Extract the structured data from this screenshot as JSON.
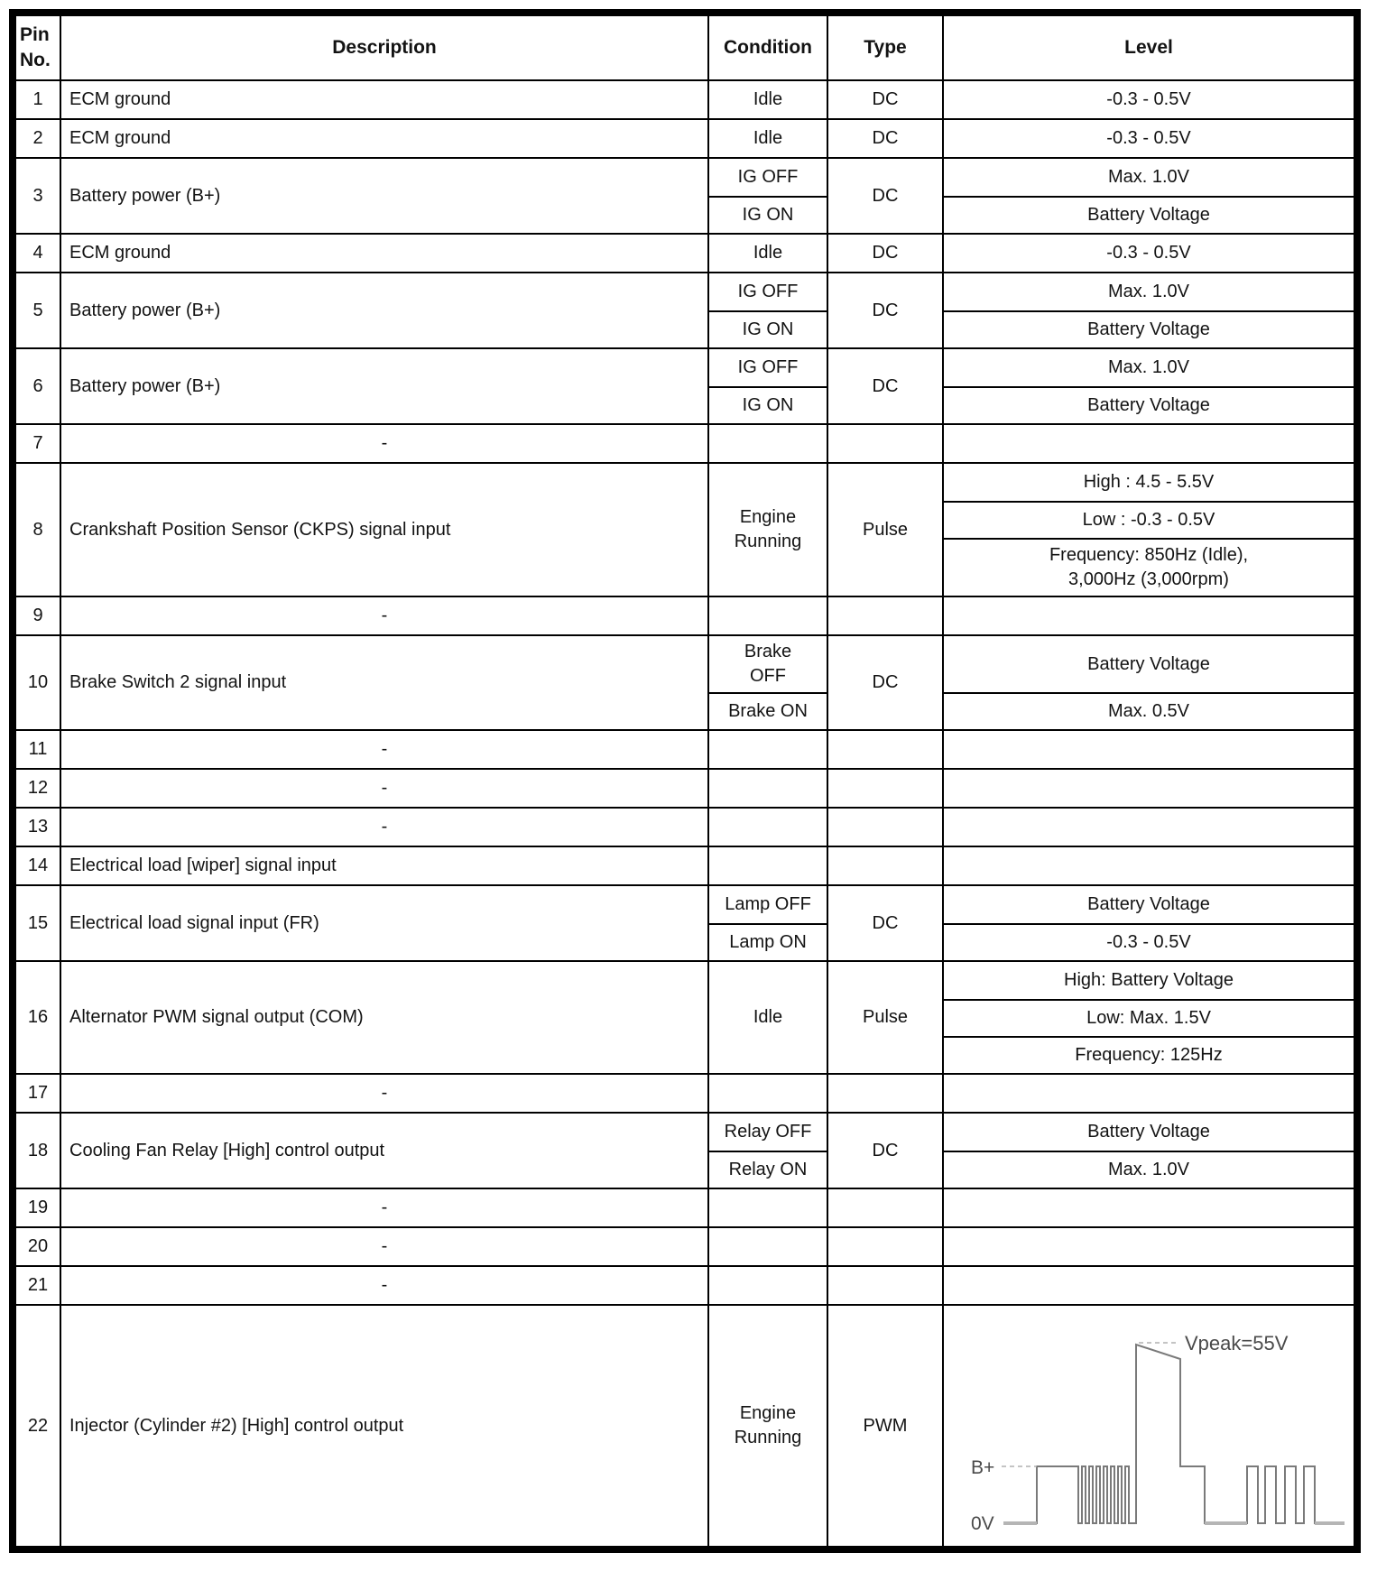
{
  "header": {
    "pin": "Pin\nNo.",
    "description": "Description",
    "condition": "Condition",
    "type": "Type",
    "level": "Level"
  },
  "rows": [
    {
      "pin": "1",
      "description": "ECM ground",
      "condition": [
        "Idle"
      ],
      "type": "DC",
      "levels": [
        "-0.3 - 0.5V"
      ]
    },
    {
      "pin": "2",
      "description": "ECM ground",
      "condition": [
        "Idle"
      ],
      "type": "DC",
      "levels": [
        "-0.3 - 0.5V"
      ]
    },
    {
      "pin": "3",
      "description": "Battery power (B+)",
      "condition": [
        "IG OFF",
        "IG ON"
      ],
      "type": "DC",
      "levels": [
        "Max. 1.0V",
        "Battery Voltage"
      ]
    },
    {
      "pin": "4",
      "description": "ECM ground",
      "condition": [
        "Idle"
      ],
      "type": "DC",
      "levels": [
        "-0.3 - 0.5V"
      ]
    },
    {
      "pin": "5",
      "description": "Battery power (B+)",
      "condition": [
        "IG OFF",
        "IG ON"
      ],
      "type": "DC",
      "levels": [
        "Max. 1.0V",
        "Battery Voltage"
      ]
    },
    {
      "pin": "6",
      "description": "Battery power (B+)",
      "condition": [
        "IG OFF",
        "IG ON"
      ],
      "type": "DC",
      "levels": [
        "Max. 1.0V",
        "Battery Voltage"
      ]
    },
    {
      "pin": "7",
      "description": "-",
      "condition": [],
      "type": "",
      "levels": []
    },
    {
      "pin": "8",
      "description": "Crankshaft Position Sensor (CKPS) signal input",
      "condition": [
        "Engine\nRunning"
      ],
      "type": "Pulse",
      "levels": [
        "High : 4.5 - 5.5V",
        "Low : -0.3 - 0.5V",
        "Frequency: 850Hz (Idle),\n3,000Hz (3,000rpm)"
      ]
    },
    {
      "pin": "9",
      "description": "-",
      "condition": [],
      "type": "",
      "levels": []
    },
    {
      "pin": "10",
      "description": "Brake Switch 2 signal input",
      "condition": [
        "Brake\nOFF",
        "Brake ON"
      ],
      "type": "DC",
      "levels": [
        "Battery Voltage",
        "Max. 0.5V"
      ]
    },
    {
      "pin": "11",
      "description": "-",
      "condition": [],
      "type": "",
      "levels": []
    },
    {
      "pin": "12",
      "description": "-",
      "condition": [],
      "type": "",
      "levels": []
    },
    {
      "pin": "13",
      "description": "-",
      "condition": [],
      "type": "",
      "levels": []
    },
    {
      "pin": "14",
      "description": "Electrical load [wiper] signal input",
      "condition": [],
      "type": "",
      "levels": []
    },
    {
      "pin": "15",
      "description": "Electrical load signal input (FR)",
      "condition": [
        "Lamp OFF",
        "Lamp ON"
      ],
      "type": "DC",
      "levels": [
        "Battery Voltage",
        "-0.3 - 0.5V"
      ]
    },
    {
      "pin": "16",
      "description": "Alternator PWM signal output (COM)",
      "condition": [
        "Idle"
      ],
      "type": "Pulse",
      "levels": [
        "High: Battery Voltage",
        "Low: Max. 1.5V",
        "Frequency: 125Hz"
      ]
    },
    {
      "pin": "17",
      "description": "-",
      "condition": [],
      "type": "",
      "levels": []
    },
    {
      "pin": "18",
      "description": "Cooling Fan Relay [High] control output",
      "condition": [
        "Relay OFF",
        "Relay ON"
      ],
      "type": "DC",
      "levels": [
        "Battery Voltage",
        "Max. 1.0V"
      ]
    },
    {
      "pin": "19",
      "description": "-",
      "condition": [],
      "type": "",
      "levels": []
    },
    {
      "pin": "20",
      "description": "-",
      "condition": [],
      "type": "",
      "levels": []
    },
    {
      "pin": "21",
      "description": "-",
      "condition": [],
      "type": "",
      "levels": []
    },
    {
      "pin": "22",
      "description": "Injector (Cylinder #2) [High] control output",
      "condition": [
        "Engine\nRunning"
      ],
      "type": "PWM",
      "levels": [],
      "waveform": true
    }
  ],
  "waveform": {
    "vpeak_label": "Vpeak=55V",
    "bplus_label": "B+",
    "zero_label": "0V",
    "trace_color": "#7a7a7a",
    "baseline_color": "#b5b5b5",
    "dash_color": "#b0b0b0",
    "label_color": "#4a4a4a"
  }
}
